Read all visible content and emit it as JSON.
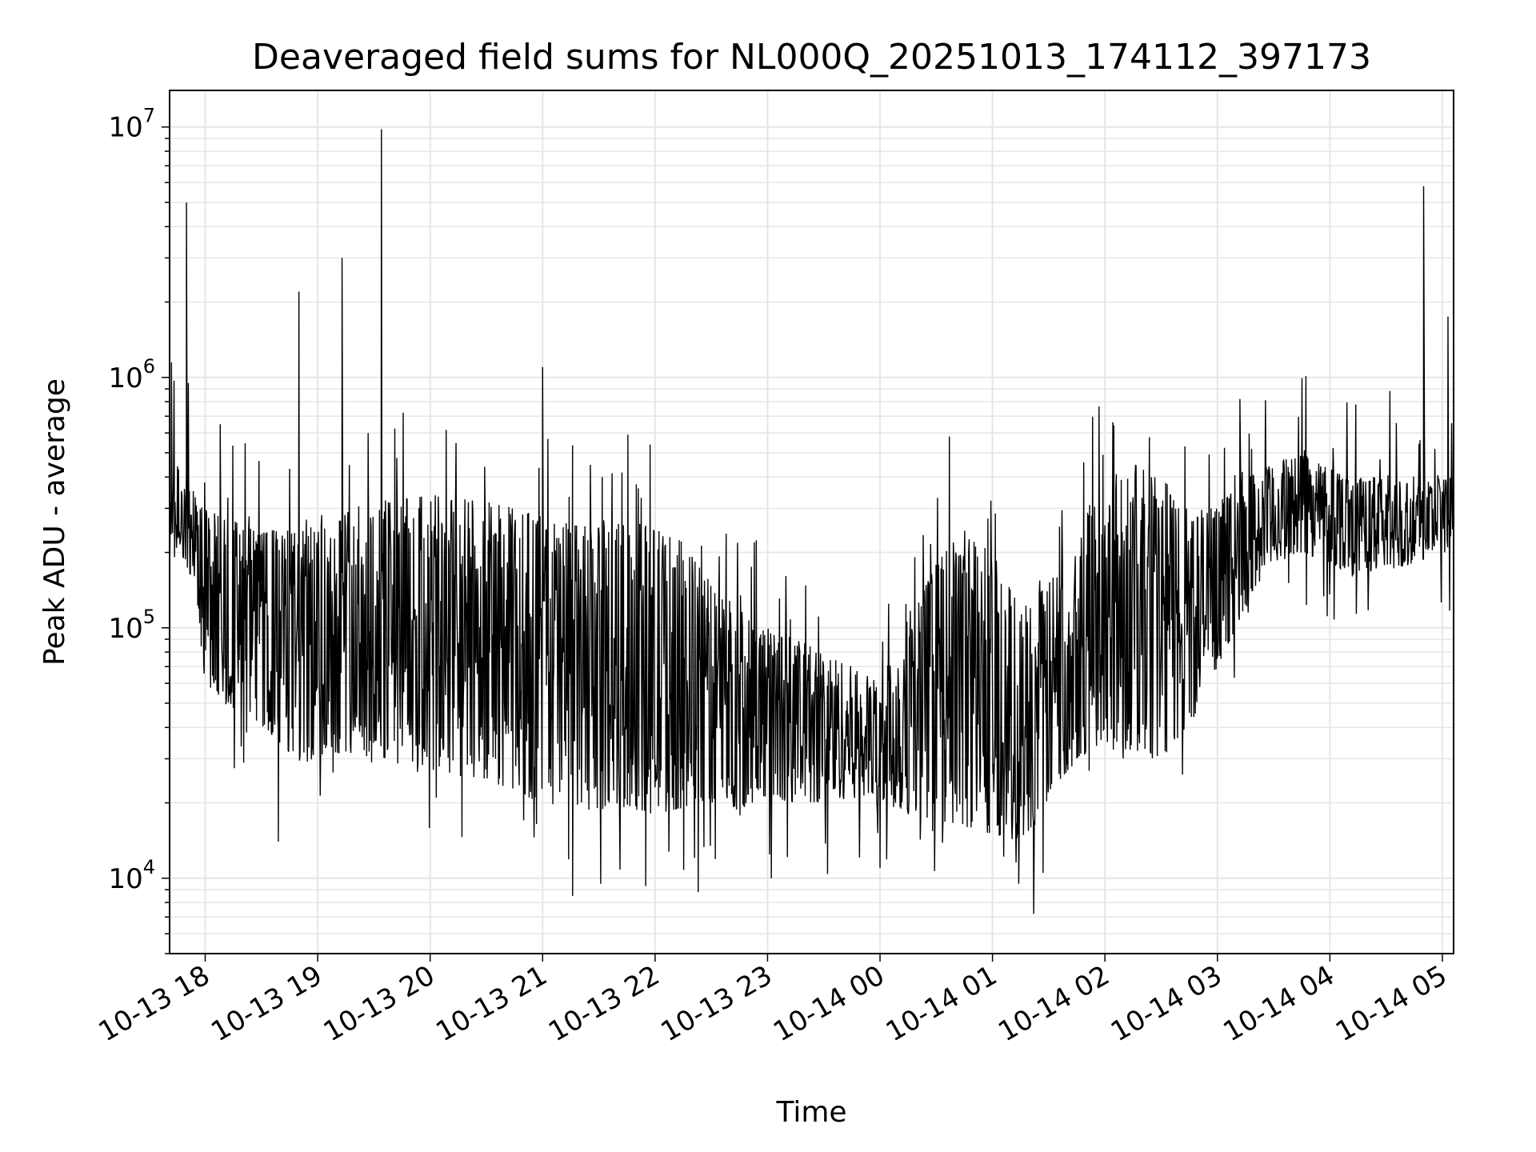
{
  "chart_data": {
    "type": "line",
    "title": "Deaveraged field sums for NL000Q_20251013_174112_397173",
    "xlabel": "Time",
    "ylabel": "Peak ADU - average",
    "y_scale": "log",
    "ylim": [
      5000,
      14000000
    ],
    "xlim": [
      "2025-10-13 17:41",
      "2025-10-14 05:06"
    ],
    "grid": true,
    "line_color": "#000000",
    "grid_color": "#e6e6e6",
    "x_ticks": [
      "10-13 18",
      "10-13 19",
      "10-13 20",
      "10-13 21",
      "10-13 22",
      "10-13 23",
      "10-14 00",
      "10-14 01",
      "10-14 02",
      "10-14 03",
      "10-14 04",
      "10-14 05"
    ],
    "x_tick_times": [
      "2025-10-13 18:00",
      "2025-10-13 19:00",
      "2025-10-13 20:00",
      "2025-10-13 21:00",
      "2025-10-13 22:00",
      "2025-10-13 23:00",
      "2025-10-14 00:00",
      "2025-10-14 01:00",
      "2025-10-14 02:00",
      "2025-10-14 03:00",
      "2025-10-14 04:00",
      "2025-10-14 05:00"
    ],
    "y_ticks": [
      {
        "base": "10",
        "exp": "4",
        "value": 10000
      },
      {
        "base": "10",
        "exp": "5",
        "value": 100000
      },
      {
        "base": "10",
        "exp": "6",
        "value": 1000000
      },
      {
        "base": "10",
        "exp": "7",
        "value": 10000000
      }
    ],
    "series": [
      {
        "x": [
          "2025-10-13 17:41",
          "2025-10-13 17:47",
          "2025-10-13 17:54",
          "2025-10-13 18:00",
          "2025-10-13 18:10",
          "2025-10-13 18:20",
          "2025-10-13 18:30",
          "2025-10-13 18:40",
          "2025-10-13 18:50",
          "2025-10-13 19:00",
          "2025-10-13 19:15",
          "2025-10-13 19:30",
          "2025-10-13 19:45",
          "2025-10-13 20:00",
          "2025-10-13 20:15",
          "2025-10-13 20:30",
          "2025-10-13 20:45",
          "2025-10-13 21:00",
          "2025-10-13 21:15",
          "2025-10-13 21:30",
          "2025-10-13 21:45",
          "2025-10-13 22:00",
          "2025-10-13 22:15",
          "2025-10-13 22:30",
          "2025-10-13 22:45",
          "2025-10-13 23:00",
          "2025-10-13 23:15",
          "2025-10-13 23:30",
          "2025-10-13 23:45",
          "2025-10-14 00:00",
          "2025-10-14 00:15",
          "2025-10-14 00:30",
          "2025-10-14 00:45",
          "2025-10-14 01:00",
          "2025-10-14 01:15",
          "2025-10-14 01:30",
          "2025-10-14 01:45",
          "2025-10-14 02:00",
          "2025-10-14 02:15",
          "2025-10-14 02:30",
          "2025-10-14 02:45",
          "2025-10-14 03:00",
          "2025-10-14 03:15",
          "2025-10-14 03:30",
          "2025-10-14 03:45",
          "2025-10-14 04:00",
          "2025-10-14 04:15",
          "2025-10-14 04:30",
          "2025-10-14 04:45",
          "2025-10-14 05:00",
          "2025-10-14 05:06"
        ],
        "y_low": [
          180000,
          200000,
          150000,
          60000,
          50000,
          45000,
          40000,
          35000,
          28000,
          30000,
          32000,
          30000,
          28000,
          26000,
          25000,
          25000,
          22000,
          20000,
          18000,
          19000,
          19000,
          18000,
          19000,
          20000,
          19000,
          21000,
          20000,
          20000,
          21000,
          20000,
          18000,
          17000,
          16000,
          15000,
          14000,
          20000,
          30000,
          35000,
          32000,
          30000,
          40000,
          70000,
          120000,
          180000,
          200000,
          180000,
          160000,
          170000,
          180000,
          200000,
          200000
        ],
        "y_high": [
          400000,
          500000,
          350000,
          300000,
          280000,
          260000,
          240000,
          250000,
          240000,
          260000,
          300000,
          320000,
          330000,
          340000,
          330000,
          320000,
          300000,
          280000,
          260000,
          250000,
          270000,
          250000,
          220000,
          150000,
          120000,
          100000,
          90000,
          80000,
          70000,
          60000,
          110000,
          180000,
          250000,
          200000,
          120000,
          150000,
          250000,
          400000,
          450000,
          400000,
          300000,
          300000,
          400000,
          450000,
          500000,
          450000,
          400000,
          400000,
          380000,
          400000,
          400000
        ],
        "spikes": [
          {
            "x": "2025-10-13 17:42",
            "y": 1150000
          },
          {
            "x": "2025-10-13 17:50",
            "y": 5000000
          },
          {
            "x": "2025-10-13 17:51",
            "y": 950000
          },
          {
            "x": "2025-10-13 18:08",
            "y": 650000
          },
          {
            "x": "2025-10-13 18:50",
            "y": 2200000
          },
          {
            "x": "2025-10-13 19:13",
            "y": 3000000
          },
          {
            "x": "2025-10-13 19:34",
            "y": 9800000
          },
          {
            "x": "2025-10-13 21:00",
            "y": 1100000
          },
          {
            "x": "2025-10-14 00:37",
            "y": 580000
          },
          {
            "x": "2025-10-14 03:12",
            "y": 820000
          },
          {
            "x": "2025-10-14 04:50",
            "y": 5800000
          },
          {
            "x": "2025-10-14 05:03",
            "y": 1750000
          }
        ],
        "dips": [
          {
            "x": "2025-10-13 18:39",
            "y": 14000
          },
          {
            "x": "2025-10-13 21:16",
            "y": 8500
          },
          {
            "x": "2025-10-13 21:31",
            "y": 9500
          },
          {
            "x": "2025-10-13 21:55",
            "y": 9300
          },
          {
            "x": "2025-10-13 22:23",
            "y": 8800
          },
          {
            "x": "2025-10-13 23:02",
            "y": 10000
          },
          {
            "x": "2025-10-13 23:32",
            "y": 10400
          },
          {
            "x": "2025-10-14 00:00",
            "y": 11000
          },
          {
            "x": "2025-10-14 01:14",
            "y": 9500
          },
          {
            "x": "2025-10-14 01:22",
            "y": 7200
          },
          {
            "x": "2025-10-14 01:27",
            "y": 10500
          }
        ]
      }
    ]
  }
}
